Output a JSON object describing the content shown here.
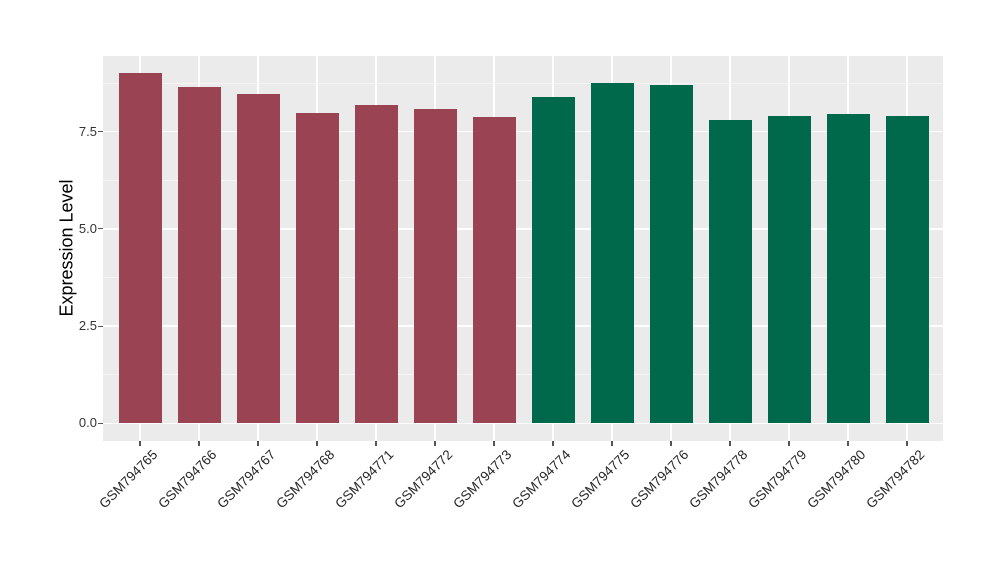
{
  "chart_data": {
    "type": "bar",
    "title": "",
    "xlabel": "",
    "ylabel": "Expression Level",
    "categories": [
      "GSM794765",
      "GSM794766",
      "GSM794767",
      "GSM794768",
      "GSM794771",
      "GSM794772",
      "GSM794773",
      "GSM794774",
      "GSM794775",
      "GSM794776",
      "GSM794778",
      "GSM794779",
      "GSM794780",
      "GSM794782"
    ],
    "values": [
      9.0,
      8.64,
      8.47,
      7.97,
      8.19,
      8.09,
      7.88,
      8.4,
      8.75,
      8.7,
      7.8,
      7.91,
      7.96,
      7.9
    ],
    "groups": [
      "group1",
      "group1",
      "group1",
      "group1",
      "group1",
      "group1",
      "group1",
      "group2",
      "group2",
      "group2",
      "group2",
      "group2",
      "group2",
      "group2"
    ],
    "group_colors": {
      "group1": "#9A4352",
      "group2": "#00684B"
    },
    "ylim": [
      0,
      9.45
    ],
    "yticks": [
      0,
      2.5,
      5,
      7.5
    ],
    "ytick_labels": [
      "0.0",
      "2.5",
      "5.0",
      "7.5"
    ],
    "yticks_minor": [
      1.25,
      3.75,
      6.25,
      8.75
    ],
    "grid": true,
    "legend_position": "none",
    "x_label_angle": 45,
    "panel_background": "#EBEBEB",
    "grid_color": "#FFFFFF",
    "minor_grid_color": "#F5F5F5"
  }
}
